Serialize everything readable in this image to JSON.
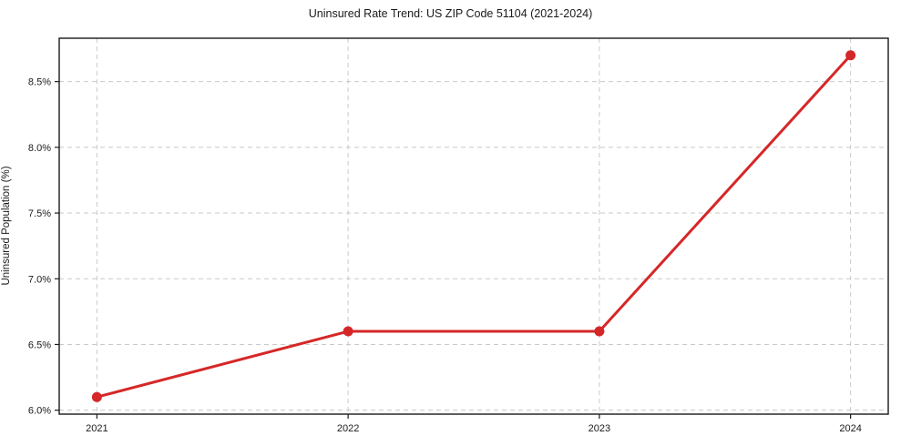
{
  "chart_data": {
    "type": "line",
    "title": "Uninsured Rate Trend: US ZIP Code 51104 (2021-2024)",
    "xlabel": "",
    "ylabel": "Uninsured Population (%)",
    "x": [
      2021,
      2022,
      2023,
      2024
    ],
    "values": [
      6.1,
      6.6,
      6.6,
      8.7
    ],
    "x_tick_labels": [
      "2021",
      "2022",
      "2023",
      "2024"
    ],
    "y_tick_values": [
      6.0,
      6.5,
      7.0,
      7.5,
      8.0,
      8.5
    ],
    "y_tick_labels": [
      "6.0%",
      "6.5%",
      "7.0%",
      "7.5%",
      "8.0%",
      "8.5%"
    ],
    "xlim": [
      2020.85,
      2024.15
    ],
    "ylim": [
      5.97,
      8.83
    ],
    "grid": "dashed-both-axes",
    "legend": "none",
    "colors": {
      "line": "#d62728",
      "marker": "#d62728",
      "gridline": "#c9c9c9",
      "spine": "#1a1a1a",
      "tick_text": "#1a1a1a",
      "background": "#ffffff"
    }
  }
}
